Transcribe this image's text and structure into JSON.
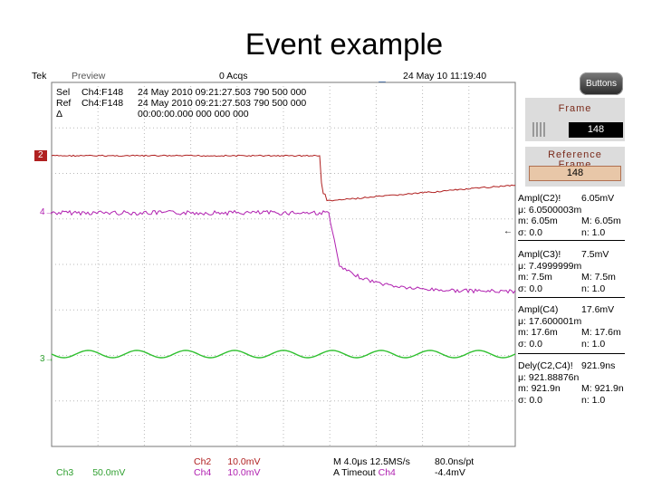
{
  "title": "Event example",
  "topbar": {
    "brand": "Tek",
    "mode": "Preview",
    "acqs": "0 Acqs",
    "datetime": "24 May 10 11:19:40"
  },
  "info": {
    "rows": [
      {
        "label": "Sel",
        "chan": "Ch4:F148",
        "time": "24 May 2010 09:21:27.503 790 500 000"
      },
      {
        "label": "Ref",
        "chan": "Ch4:F148",
        "time": "24 May 2010 09:21:27.503 790 500 000"
      },
      {
        "label": "Δ",
        "chan": "",
        "time": "00:00:00.000 000 000 000"
      }
    ]
  },
  "panel": {
    "buttons_label": "Buttons",
    "frame_label": "Frame",
    "frame_value": "148",
    "ref_frame_label_1": "Reference",
    "ref_frame_label_2": "Frame",
    "ref_frame_value": "148"
  },
  "measurements": [
    {
      "title": "Ampl(C2)!",
      "value": "6.05mV",
      "mu": "μ: 6.0500003m",
      "m": "m: 6.05m",
      "M": "M: 6.05m",
      "sigma": "σ: 0.0",
      "n": "n: 1.0"
    },
    {
      "title": "Ampl(C3)!",
      "value": "7.5mV",
      "mu": "μ: 7.4999999m",
      "m": "m: 7.5m",
      "M": "M: 7.5m",
      "sigma": "σ: 0.0",
      "n": "n: 1.0"
    },
    {
      "title": "Ampl(C4)",
      "value": "17.6mV",
      "mu": "μ: 17.600001m",
      "m": "m: 17.6m",
      "M": "M: 17.6m",
      "sigma": "σ: 0.0",
      "n": "n: 1.0"
    },
    {
      "title": "Dely(C2,C4)!",
      "value": "921.9ns",
      "mu": "μ: 921.88876n",
      "m": "m: 921.9n",
      "M": "M: 921.9n",
      "sigma": "σ: 0.0",
      "n": "n: 1.0"
    }
  ],
  "channels": {
    "ch2": "2",
    "ch4": "4",
    "ch3": "3"
  },
  "bottom": {
    "ch3": "Ch3",
    "ch3_scale": "50.0mV",
    "ch2": "Ch2",
    "ch2_scale": "10.0mV",
    "ch4": "Ch4",
    "ch4_scale": "10.0mV",
    "timebase": "M 4.0μs 12.5MS/s",
    "trigger": "A  Timeout",
    "trigger_src": "Ch4",
    "pt": "80.0ns/pt",
    "level": "-4.4mV"
  },
  "colors": {
    "ch2": "#b02020",
    "ch4": "#b020b0",
    "ch3": "#30c030",
    "grid": "#b8b8b8"
  }
}
